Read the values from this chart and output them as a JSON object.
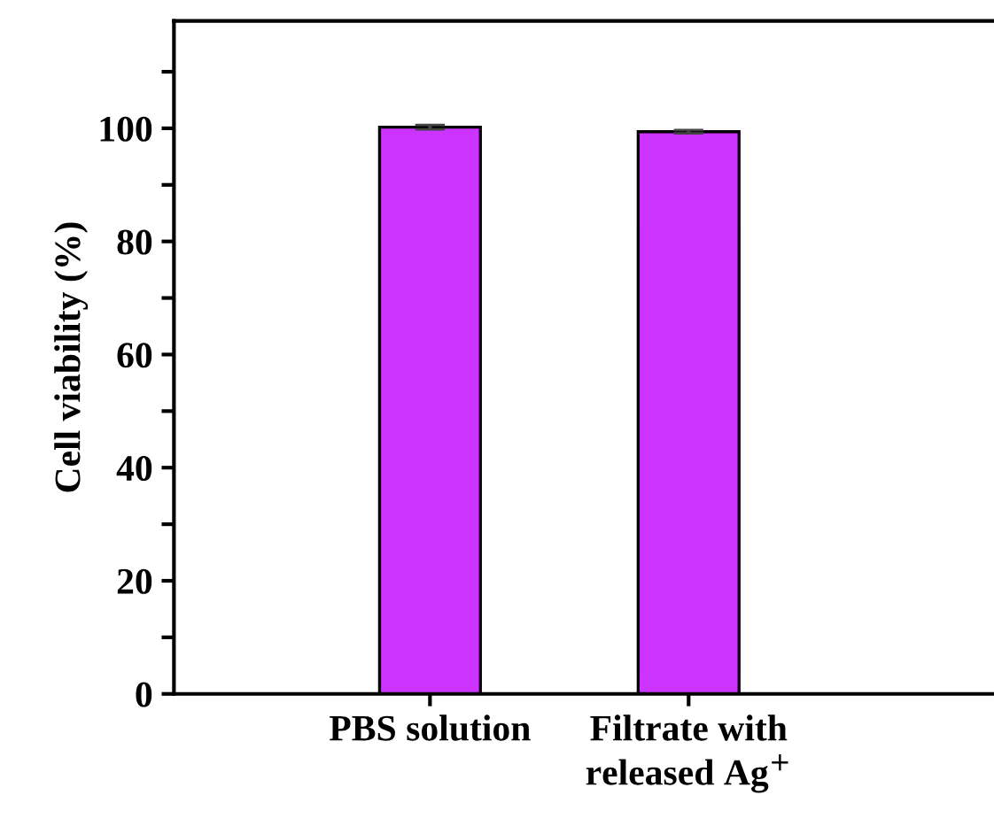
{
  "chart_data": {
    "type": "bar",
    "ylabel": "Cell viability (%)",
    "categories": [
      "PBS solution",
      "Filtrate with\nreleased Ag$^{+}$"
    ],
    "values": [
      100.2,
      99.4
    ],
    "errors": [
      0.4,
      0.3
    ],
    "color": "#cc33ff",
    "ylim": [
      0,
      119
    ],
    "yticks": [
      0,
      {
        "value": 10,
        "label": null
      },
      20,
      {
        "value": 30,
        "label": null
      },
      40,
      {
        "value": 50,
        "label": null
      },
      60,
      {
        "value": 70,
        "label": null
      },
      80,
      {
        "value": 90,
        "label": null
      },
      100,
      {
        "value": 110,
        "label": null
      }
    ],
    "grid": false,
    "legend": false
  }
}
